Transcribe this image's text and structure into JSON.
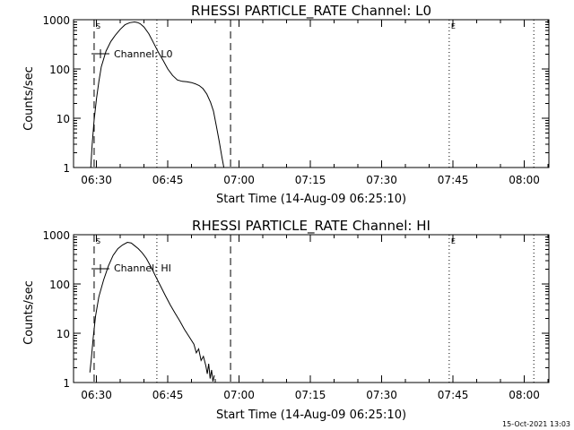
{
  "chart_data": [
    {
      "type": "line",
      "title": "RHESSI PARTICLE_RATE Channel: L0",
      "xlabel": "Start Time (14-Aug-09 06:25:10)",
      "ylabel": "Counts/sec",
      "x_unit": "minutes of day (UT)",
      "xlim": [
        385.17,
        485.17
      ],
      "ylim": [
        1,
        1000
      ],
      "y_scale": "log",
      "x_ticks": [
        {
          "v": 390,
          "label": "06:30"
        },
        {
          "v": 405,
          "label": "06:45"
        },
        {
          "v": 420,
          "label": "07:00"
        },
        {
          "v": 435,
          "label": "07:15"
        },
        {
          "v": 450,
          "label": "07:30"
        },
        {
          "v": 465,
          "label": "07:45"
        },
        {
          "v": 480,
          "label": "08:00"
        }
      ],
      "y_ticks": [
        {
          "v": 1,
          "label": "1"
        },
        {
          "v": 10,
          "label": "10"
        },
        {
          "v": 100,
          "label": "100"
        },
        {
          "v": 1000,
          "label": "1000"
        }
      ],
      "legend": {
        "label": "Channel: L0",
        "position": "top-left"
      },
      "markers": [
        {
          "time": 389.5,
          "style": "dashed",
          "label": "S"
        },
        {
          "time": 402.7,
          "style": "dotted",
          "label": ""
        },
        {
          "time": 418.2,
          "style": "dashed",
          "label": ""
        },
        {
          "time": 464.2,
          "style": "dotted",
          "label": "E"
        },
        {
          "time": 482.0,
          "style": "dotted",
          "label": ""
        }
      ],
      "series": [
        {
          "name": "Channel: L0",
          "x": [
            388.8,
            389.1,
            389.5,
            390.0,
            390.5,
            391.0,
            392.0,
            393.0,
            394.0,
            395.0,
            396.0,
            397.0,
            398.0,
            398.6,
            399.2,
            400.0,
            401.0,
            402.0,
            403.0,
            404.0,
            405.0,
            406.0,
            407.0,
            408.0,
            409.0,
            410.0,
            410.8,
            411.6,
            412.4,
            413.2,
            414.0,
            414.6,
            415.2,
            415.8,
            416.4,
            416.8
          ],
          "y": [
            1,
            3,
            9,
            25,
            55,
            110,
            230,
            360,
            490,
            640,
            790,
            870,
            900,
            880,
            830,
            710,
            520,
            340,
            220,
            150,
            100,
            74,
            60,
            56,
            55,
            53,
            50,
            46,
            40,
            31,
            21,
            14,
            7,
            3.5,
            1.6,
            1
          ]
        }
      ]
    },
    {
      "type": "line",
      "title": "RHESSI PARTICLE_RATE Channel: HI",
      "xlabel": "Start Time (14-Aug-09 06:25:10)",
      "ylabel": "Counts/sec",
      "x_unit": "minutes of day (UT)",
      "xlim": [
        385.17,
        485.17
      ],
      "ylim": [
        1,
        1000
      ],
      "y_scale": "log",
      "x_ticks": [
        {
          "v": 390,
          "label": "06:30"
        },
        {
          "v": 405,
          "label": "06:45"
        },
        {
          "v": 420,
          "label": "07:00"
        },
        {
          "v": 435,
          "label": "07:15"
        },
        {
          "v": 450,
          "label": "07:30"
        },
        {
          "v": 465,
          "label": "07:45"
        },
        {
          "v": 480,
          "label": "08:00"
        }
      ],
      "y_ticks": [
        {
          "v": 1,
          "label": "1"
        },
        {
          "v": 10,
          "label": "10"
        },
        {
          "v": 100,
          "label": "100"
        },
        {
          "v": 1000,
          "label": "1000"
        }
      ],
      "legend": {
        "label": "Channel: HI",
        "position": "top-left"
      },
      "markers": [
        {
          "time": 389.5,
          "style": "dashed",
          "label": "S"
        },
        {
          "time": 402.7,
          "style": "dotted",
          "label": ""
        },
        {
          "time": 418.2,
          "style": "dashed",
          "label": ""
        },
        {
          "time": 464.2,
          "style": "dotted",
          "label": "E"
        },
        {
          "time": 482.0,
          "style": "dotted",
          "label": ""
        }
      ],
      "series": [
        {
          "name": "Channel: HI",
          "x": [
            388.6,
            388.9,
            389.3,
            389.8,
            390.5,
            391.5,
            392.5,
            393.5,
            394.5,
            395.5,
            396.5,
            397.3,
            398.0,
            398.8,
            399.6,
            400.5,
            401.5,
            402.5,
            403.5,
            404.5,
            405.5,
            406.5,
            407.5,
            408.5,
            409.5,
            410.5,
            411.0,
            411.5,
            412.0,
            412.5,
            413.0,
            413.3,
            413.6,
            413.9,
            414.2,
            414.5,
            414.8
          ],
          "y": [
            1.6,
            3,
            8,
            22,
            55,
            120,
            230,
            380,
            520,
            620,
            700,
            680,
            600,
            520,
            430,
            330,
            220,
            140,
            90,
            58,
            38,
            26,
            18,
            12,
            8.5,
            6,
            4,
            4.8,
            2.8,
            3.4,
            2.2,
            1.5,
            2.4,
            1.2,
            1.8,
            1.05,
            1.4
          ]
        }
      ]
    }
  ],
  "footer": {
    "timestamp": "15-Oct-2021 13:03"
  }
}
